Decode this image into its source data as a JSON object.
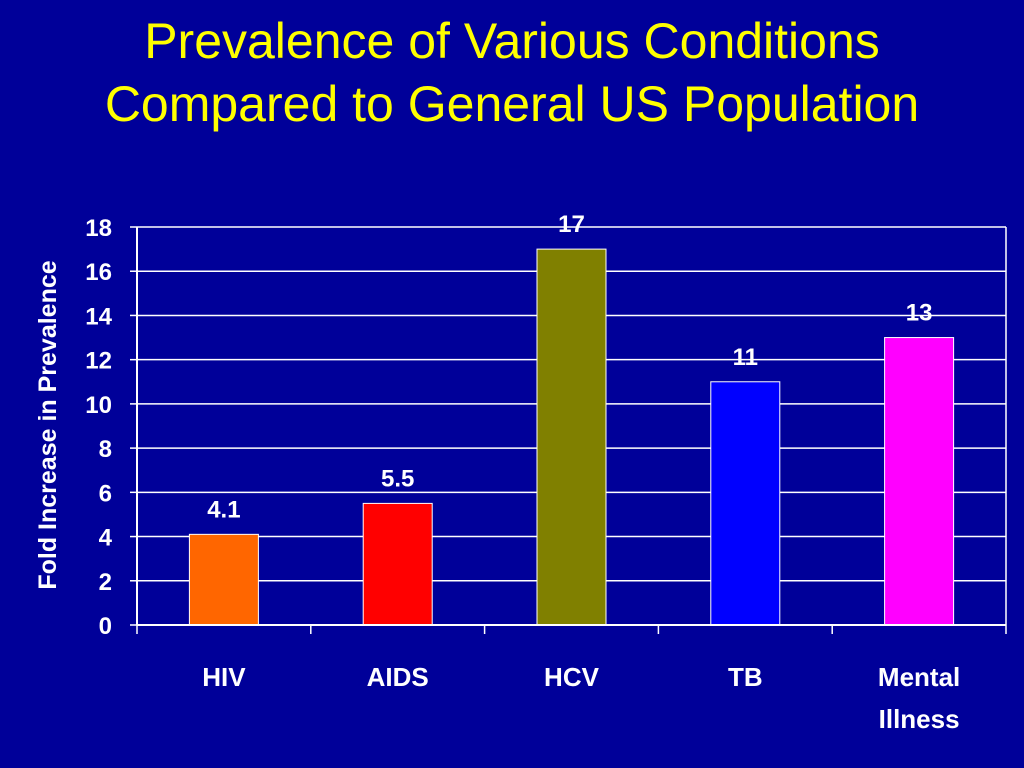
{
  "slide": {
    "title_line1": "Prevalence of Various Conditions",
    "title_line2": "Compared to General US Population"
  },
  "colors": {
    "background": "#000099",
    "title": "#FFFF00",
    "text": "#FFFFFF",
    "grid": "#FFFFFF"
  },
  "chart_data": {
    "type": "bar",
    "title": "Prevalence of Various Conditions Compared to General US Population",
    "xlabel": "",
    "ylabel": "Fold Increase in Prevalence",
    "ylim": [
      0,
      18
    ],
    "yticks": [
      0,
      2,
      4,
      6,
      8,
      10,
      12,
      14,
      16,
      18
    ],
    "grid": true,
    "categories": [
      {
        "lines": [
          "HIV"
        ]
      },
      {
        "lines": [
          "AIDS"
        ]
      },
      {
        "lines": [
          "HCV"
        ]
      },
      {
        "lines": [
          "TB"
        ]
      },
      {
        "lines": [
          "Mental",
          "Illness"
        ]
      }
    ],
    "values": [
      4.1,
      5.5,
      17,
      11,
      13
    ],
    "value_labels": [
      "4.1",
      "5.5",
      "17",
      "11",
      "13"
    ],
    "bar_colors": [
      "#FF6600",
      "#FF0000",
      "#808000",
      "#0000FF",
      "#FF00FF"
    ]
  }
}
